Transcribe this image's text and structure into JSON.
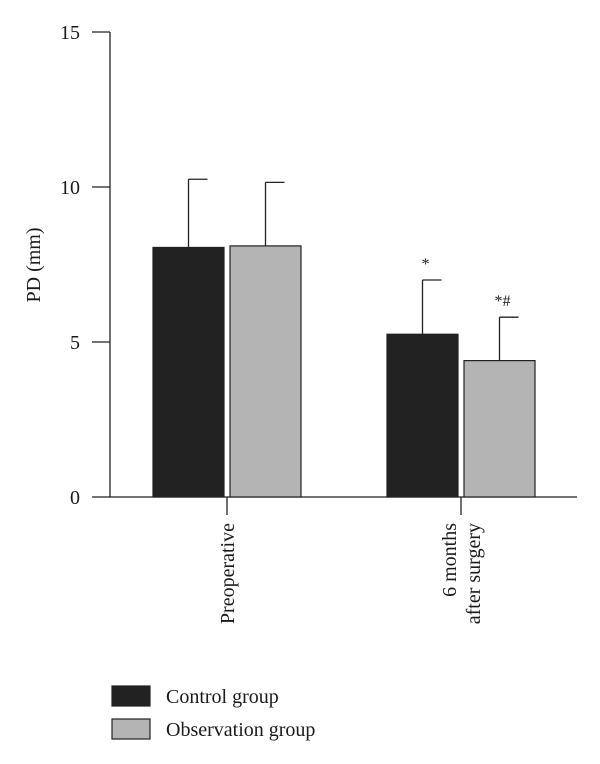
{
  "chart_data": {
    "type": "bar",
    "ylabel": "PD (mm)",
    "ylim": [
      0,
      15
    ],
    "yticks": [
      0,
      5,
      10,
      15
    ],
    "grid": false,
    "legend_position": "bottom-left",
    "categories": [
      [
        "Preoperative"
      ],
      [
        "6 months",
        "after surgery"
      ]
    ],
    "category_labels": [
      "Preoperative",
      "6 months after surgery"
    ],
    "series": [
      {
        "name": "Control group",
        "color": "#222222",
        "values": [
          8.05,
          5.25
        ],
        "errors": [
          2.2,
          1.75
        ],
        "annotations": [
          "",
          "*"
        ]
      },
      {
        "name": "Observation group",
        "color": "#b4b4b4",
        "values": [
          8.1,
          4.4
        ],
        "errors": [
          2.05,
          1.4
        ],
        "annotations": [
          "",
          "*#"
        ]
      }
    ]
  }
}
